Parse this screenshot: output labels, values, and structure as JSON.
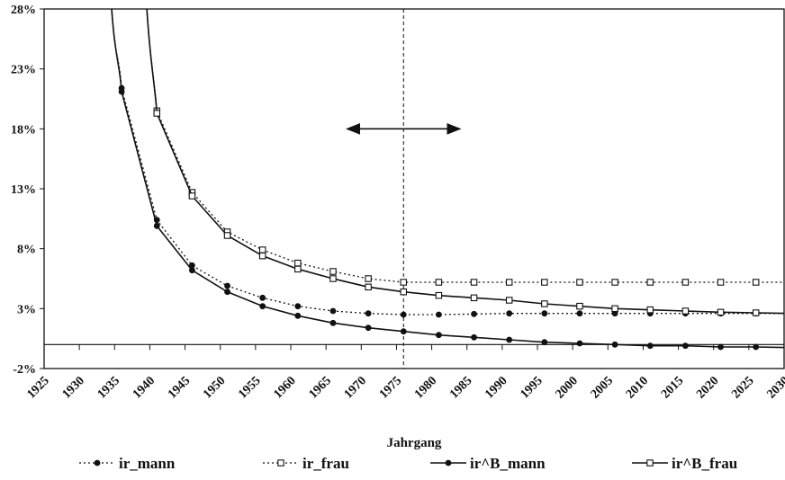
{
  "chart_data": {
    "type": "line",
    "xlabel": "Jahrgang",
    "ylabel": "",
    "ylim": [
      -2,
      28
    ],
    "xlim": [
      1925,
      2030
    ],
    "y_ticks": [
      {
        "value": -2,
        "label": "-2%"
      },
      {
        "value": 3,
        "label": "3%"
      },
      {
        "value": 8,
        "label": "8%"
      },
      {
        "value": 13,
        "label": "13%"
      },
      {
        "value": 18,
        "label": "18%"
      },
      {
        "value": 23,
        "label": "23%"
      },
      {
        "value": 28,
        "label": "28%"
      }
    ],
    "x_ticks": [
      "1925",
      "1930",
      "1935",
      "1940",
      "1945",
      "1950",
      "1955",
      "1960",
      "1965",
      "1970",
      "1975",
      "1980",
      "1985",
      "1990",
      "1995",
      "2000",
      "2005",
      "2010",
      "2015",
      "2020",
      "2025",
      "2030"
    ],
    "vertical_line_x": 1976,
    "annotation_arrow": {
      "from_x": 1968,
      "to_x": 1984,
      "y": 18,
      "double_headed": true
    },
    "grid": false,
    "legend_placement": "bottom",
    "series": [
      {
        "name": "ir_mann",
        "line_style": "dotted",
        "marker": "filled-circle",
        "color": "#111111",
        "x": [
          1936,
          1941,
          1946,
          1951,
          1956,
          1961,
          1966,
          1971,
          1976,
          1981,
          1986,
          1991,
          1996,
          2001,
          2006,
          2011,
          2016,
          2021,
          2026,
          2031
        ],
        "y": [
          21.4,
          10.4,
          6.6,
          4.9,
          3.9,
          3.2,
          2.8,
          2.6,
          2.5,
          2.5,
          2.55,
          2.6,
          2.6,
          2.6,
          2.6,
          2.6,
          2.6,
          2.6,
          2.6,
          2.6
        ]
      },
      {
        "name": "ir_frau",
        "line_style": "dotted",
        "marker": "open-square",
        "color": "#111111",
        "x": [
          1941,
          1946,
          1951,
          1956,
          1961,
          1966,
          1971,
          1976,
          1981,
          1986,
          1991,
          1996,
          2001,
          2006,
          2011,
          2016,
          2021,
          2026,
          2031
        ],
        "y": [
          19.5,
          12.7,
          9.4,
          7.9,
          6.8,
          6.1,
          5.5,
          5.2,
          5.2,
          5.2,
          5.2,
          5.2,
          5.2,
          5.2,
          5.2,
          5.2,
          5.2,
          5.2,
          5.2
        ]
      },
      {
        "name": "ir^B_mann",
        "line_style": "solid",
        "marker": "filled-circle",
        "color": "#111111",
        "x": [
          1936,
          1941,
          1946,
          1951,
          1956,
          1961,
          1966,
          1971,
          1976,
          1981,
          1986,
          1991,
          1996,
          2001,
          2006,
          2011,
          2016,
          2021,
          2026,
          2031
        ],
        "y": [
          21.1,
          9.9,
          6.2,
          4.4,
          3.2,
          2.4,
          1.8,
          1.4,
          1.1,
          0.8,
          0.6,
          0.4,
          0.2,
          0.1,
          0.0,
          -0.1,
          -0.1,
          -0.2,
          -0.2,
          -0.25
        ]
      },
      {
        "name": "ir^B_frau",
        "line_style": "solid",
        "marker": "open-square",
        "color": "#111111",
        "x": [
          1941,
          1946,
          1951,
          1956,
          1961,
          1966,
          1971,
          1976,
          1981,
          1986,
          1991,
          1996,
          2001,
          2006,
          2011,
          2016,
          2021,
          2026,
          2031
        ],
        "y": [
          19.3,
          12.4,
          9.1,
          7.4,
          6.3,
          5.5,
          4.8,
          4.4,
          4.1,
          3.9,
          3.7,
          3.4,
          3.2,
          3.0,
          2.9,
          2.8,
          2.7,
          2.65,
          2.6
        ]
      }
    ]
  }
}
